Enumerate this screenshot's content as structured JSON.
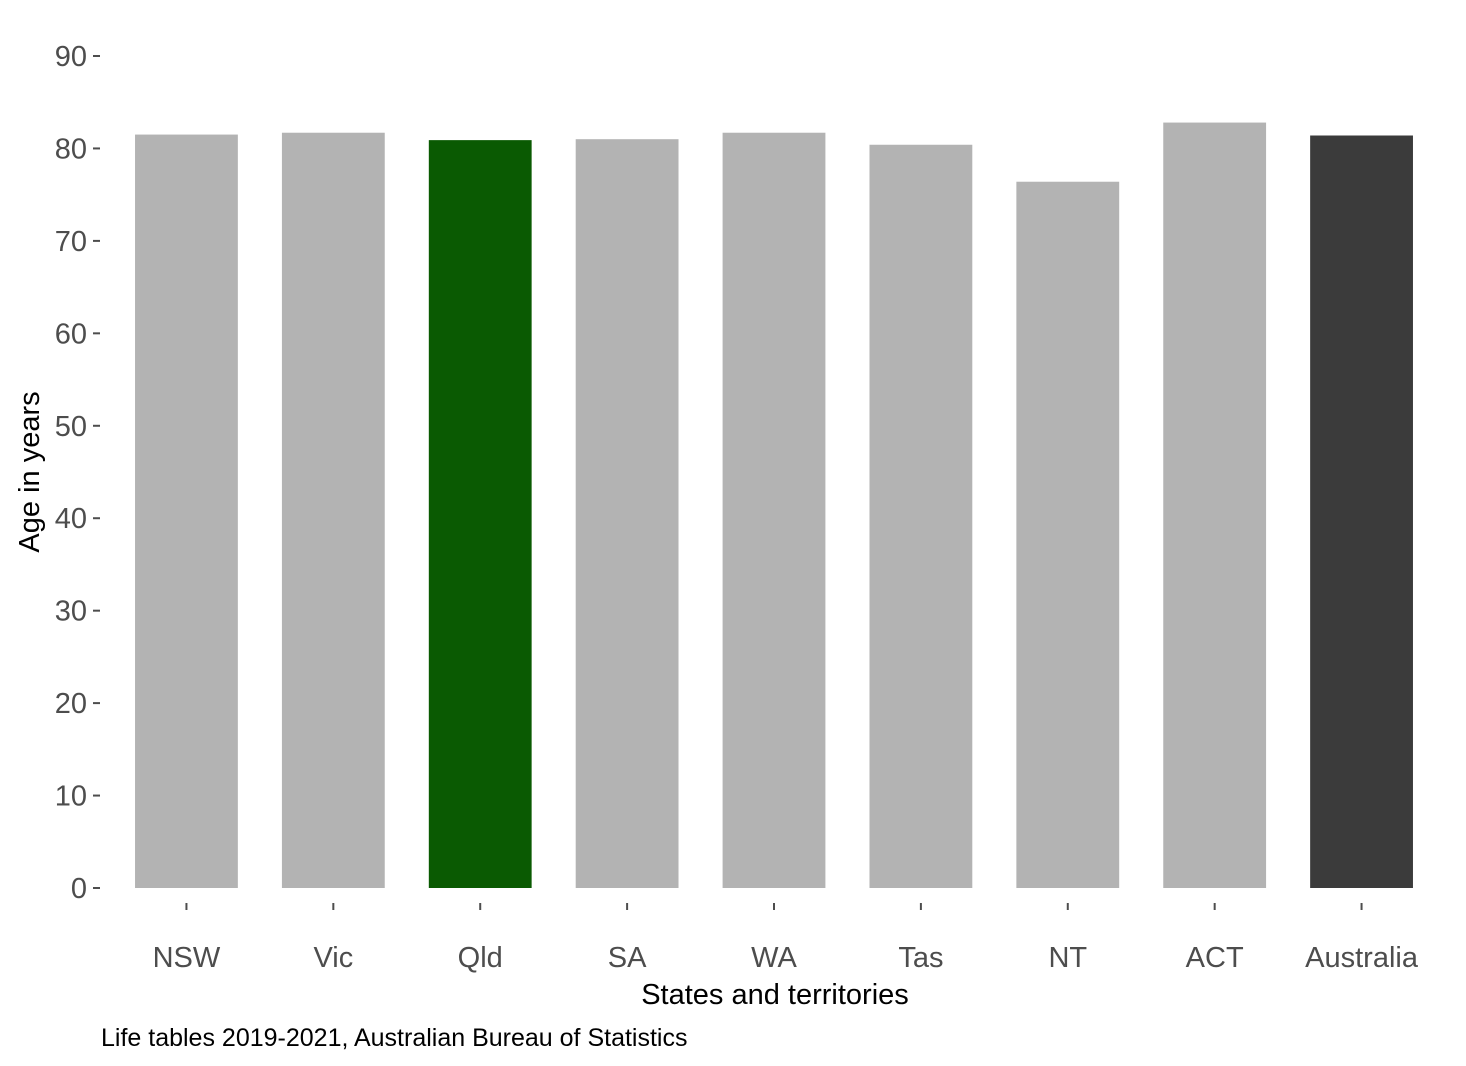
{
  "chart_data": {
    "type": "bar",
    "categories": [
      "NSW",
      "Vic",
      "Qld",
      "SA",
      "WA",
      "Tas",
      "NT",
      "ACT",
      "Australia"
    ],
    "values": [
      81.5,
      81.7,
      80.9,
      81.0,
      81.7,
      80.4,
      76.4,
      82.8,
      81.4
    ],
    "colors": [
      "#b3b3b3",
      "#b3b3b3",
      "#0a5a02",
      "#b3b3b3",
      "#b3b3b3",
      "#b3b3b3",
      "#b3b3b3",
      "#b3b3b3",
      "#3b3b3b"
    ],
    "xlabel": "States and territories",
    "ylabel": "Age in years",
    "yticks": [
      0,
      10,
      20,
      30,
      40,
      50,
      60,
      70,
      80,
      90
    ],
    "ylim": [
      0,
      90
    ],
    "grid": false,
    "legend": "none"
  },
  "caption": "Life tables 2019-2021, Australian Bureau of Statistics"
}
